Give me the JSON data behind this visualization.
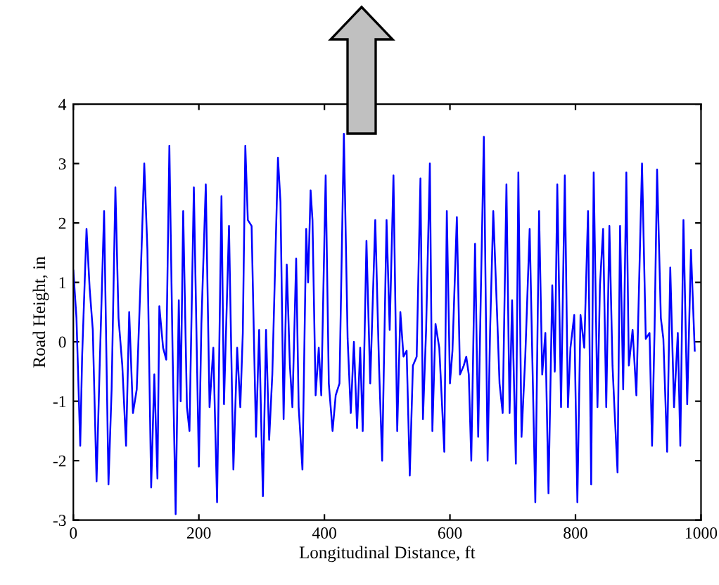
{
  "chart_data": {
    "type": "line",
    "xlabel": "Longitudinal Distance, ft",
    "ylabel": "Road Height, in",
    "xlim": [
      0,
      1000
    ],
    "ylim": [
      -3,
      4
    ],
    "xticks": [
      0,
      200,
      400,
      600,
      800,
      1000
    ],
    "yticks": [
      -3,
      -2,
      -1,
      0,
      1,
      2,
      3,
      4
    ],
    "grid": false,
    "legend": false,
    "series": [
      {
        "color": "#0000ff",
        "x": [
          0,
          5,
          11,
          14,
          21,
          26,
          31,
          37,
          42,
          49,
          56,
          61,
          67,
          72,
          78,
          84,
          89,
          95,
          101,
          107,
          113,
          118,
          124,
          129,
          134,
          137,
          143,
          148,
          153,
          158,
          163,
          168,
          171,
          175,
          181,
          185,
          192,
          200,
          204,
          211,
          217,
          223,
          229,
          236,
          240,
          248,
          255,
          261,
          266,
          270,
          274,
          278,
          284,
          291,
          296,
          302,
          307,
          312,
          317,
          326,
          330,
          335,
          340,
          345,
          349,
          355,
          359,
          365,
          371,
          374,
          378,
          381,
          386,
          391,
          395,
          402,
          407,
          413,
          418,
          424,
          431,
          437,
          442,
          447,
          452,
          457,
          461,
          467,
          473,
          481,
          487,
          492,
          499,
          504,
          510,
          516,
          521,
          526,
          531,
          536,
          541,
          547,
          553,
          557,
          562,
          568,
          572,
          577,
          583,
          591,
          595,
          600,
          604,
          611,
          616,
          622,
          626,
          630,
          634,
          640,
          645,
          649,
          654,
          660,
          664,
          669,
          675,
          679,
          684,
          690,
          695,
          699,
          705,
          709,
          714,
          720,
          727,
          736,
          742,
          747,
          752,
          757,
          763,
          767,
          771,
          777,
          783,
          788,
          792,
          798,
          803,
          808,
          814,
          820,
          825,
          829,
          835,
          839,
          844,
          849,
          854,
          859,
          862,
          867,
          871,
          876,
          881,
          885,
          891,
          897,
          906,
          912,
          918,
          922,
          926,
          930,
          936,
          940,
          946,
          951,
          957,
          963,
          967,
          972,
          978,
          984,
          990
        ],
        "values": [
          1.2,
          0.4,
          -1.75,
          -0.25,
          1.9,
          0.9,
          0.2,
          -2.35,
          -0.4,
          2.2,
          -2.4,
          -0.8,
          2.6,
          0.4,
          -0.4,
          -1.75,
          0.5,
          -1.2,
          -0.8,
          1.0,
          3.0,
          1.55,
          -2.45,
          -0.55,
          -2.3,
          0.6,
          -0.1,
          -0.3,
          3.3,
          -0.1,
          -2.9,
          0.7,
          -1.0,
          2.2,
          -1.1,
          -1.5,
          2.6,
          -2.1,
          0.3,
          2.65,
          -1.1,
          -0.1,
          -2.7,
          2.45,
          -1.05,
          1.95,
          -2.15,
          -0.1,
          -1.1,
          0.15,
          3.3,
          2.05,
          1.95,
          -1.6,
          0.2,
          -2.6,
          0.2,
          -1.65,
          -0.55,
          3.1,
          2.35,
          -1.3,
          1.3,
          -0.4,
          -1.1,
          1.4,
          -1.1,
          -2.15,
          1.9,
          1.0,
          2.55,
          2.05,
          -0.9,
          -0.1,
          -0.9,
          2.8,
          -0.7,
          -1.5,
          -0.9,
          -0.7,
          3.5,
          0.05,
          -1.2,
          0.0,
          -1.45,
          -0.1,
          -1.5,
          1.7,
          -0.7,
          2.05,
          -0.4,
          -2.0,
          2.05,
          0.2,
          2.8,
          -1.5,
          0.5,
          -0.25,
          -0.15,
          -2.25,
          -0.4,
          -0.25,
          2.75,
          -1.3,
          0.2,
          3.0,
          -1.5,
          0.3,
          -0.1,
          -1.85,
          2.2,
          -0.7,
          -0.15,
          2.1,
          -0.55,
          -0.4,
          -0.25,
          -0.55,
          -2.0,
          1.65,
          -1.6,
          0.7,
          3.45,
          -2.0,
          0.2,
          2.2,
          0.5,
          -0.7,
          -1.2,
          2.65,
          -1.2,
          0.7,
          -2.05,
          2.85,
          -1.6,
          -0.25,
          1.9,
          -2.7,
          2.2,
          -0.55,
          0.15,
          -2.55,
          0.95,
          -0.5,
          2.65,
          -1.1,
          2.8,
          -1.1,
          -0.1,
          0.45,
          -2.7,
          0.45,
          -0.1,
          2.2,
          -2.4,
          2.85,
          -1.1,
          0.95,
          1.9,
          -1.1,
          1.95,
          -0.4,
          -1.1,
          -2.2,
          1.95,
          -0.8,
          2.85,
          -0.4,
          0.2,
          -0.9,
          3.0,
          0.05,
          0.15,
          -1.75,
          0.2,
          2.9,
          0.4,
          0.05,
          -1.85,
          1.25,
          -1.1,
          0.15,
          -1.75,
          2.05,
          -1.05,
          1.55,
          -0.15
        ]
      }
    ]
  }
}
